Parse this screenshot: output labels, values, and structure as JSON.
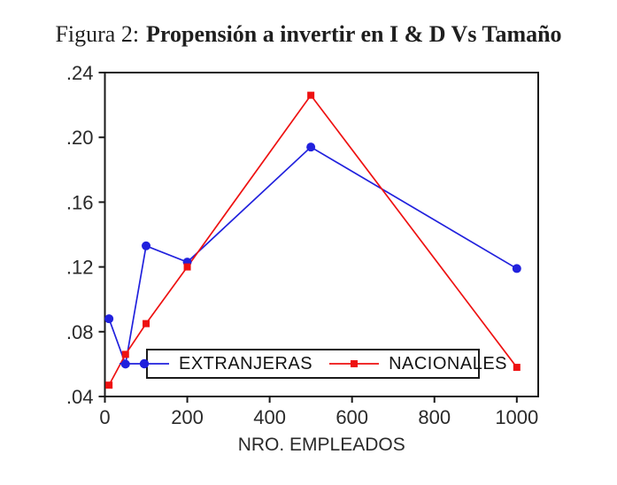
{
  "figure": {
    "title_prefix": "Figura 2:",
    "title_main": "Propensión a invertir en I & D Vs Tamaño"
  },
  "chart_data": {
    "type": "line",
    "title": "Figura 2: Propensión a invertir en I & D Vs Tamaño",
    "xlabel": "NRO. EMPLEADOS",
    "ylabel": "",
    "x": [
      10,
      50,
      100,
      200,
      500,
      1000
    ],
    "series": [
      {
        "name": "EXTRANJERAS",
        "color": "#2121dd",
        "marker": "circle",
        "values": [
          0.088,
          0.06,
          0.133,
          0.123,
          0.194,
          0.119
        ]
      },
      {
        "name": "NACIONALES",
        "color": "#ee1111",
        "marker": "square",
        "values": [
          0.047,
          0.066,
          0.085,
          0.12,
          0.226,
          0.058
        ]
      }
    ],
    "xlim": [
      0,
      1052
    ],
    "ylim": [
      0.04,
      0.24
    ],
    "xticks": [
      {
        "label": "0",
        "value": 0
      },
      {
        "label": "200",
        "value": 200
      },
      {
        "label": "400",
        "value": 400
      },
      {
        "label": "600",
        "value": 600
      },
      {
        "label": "800",
        "value": 800
      },
      {
        "label": "1000",
        "value": 1000
      }
    ],
    "yticks": [
      {
        "label": ".04",
        "value": 0.04
      },
      {
        "label": ".08",
        "value": 0.08
      },
      {
        "label": ".12",
        "value": 0.12
      },
      {
        "label": ".16",
        "value": 0.16
      },
      {
        "label": ".20",
        "value": 0.2
      },
      {
        "label": ".24",
        "value": 0.24
      }
    ],
    "grid": false,
    "legend_position": "inside-bottom"
  }
}
